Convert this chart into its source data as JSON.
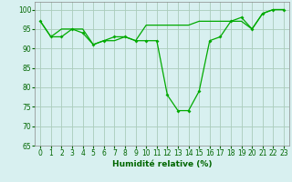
{
  "line1_x": [
    0,
    1,
    2,
    3,
    4,
    5,
    6,
    7,
    8,
    9,
    10,
    11,
    12,
    13,
    14,
    15,
    16,
    17,
    18,
    19,
    20,
    21,
    22,
    23
  ],
  "line1_y": [
    97,
    93,
    93,
    95,
    94,
    91,
    92,
    93,
    93,
    92,
    92,
    92,
    78,
    74,
    74,
    79,
    92,
    93,
    97,
    98,
    95,
    99,
    100,
    100
  ],
  "line2_x": [
    0,
    1,
    2,
    3,
    4,
    5,
    6,
    7,
    8,
    9,
    10,
    11,
    12,
    13,
    14,
    15,
    16,
    17,
    18,
    19,
    20,
    21,
    22,
    23
  ],
  "line2_y": [
    97,
    93,
    95,
    95,
    95,
    91,
    92,
    92,
    93,
    92,
    96,
    96,
    96,
    96,
    96,
    97,
    97,
    97,
    97,
    97,
    95,
    99,
    100,
    100
  ],
  "line_color": "#00aa00",
  "bg_color": "#d8f0f0",
  "grid_color": "#aaccbb",
  "xlabel": "Humidité relative (%)",
  "ylim": [
    65,
    102
  ],
  "xlim": [
    -0.5,
    23.5
  ],
  "yticks": [
    65,
    70,
    75,
    80,
    85,
    90,
    95,
    100
  ],
  "xticks": [
    0,
    1,
    2,
    3,
    4,
    5,
    6,
    7,
    8,
    9,
    10,
    11,
    12,
    13,
    14,
    15,
    16,
    17,
    18,
    19,
    20,
    21,
    22,
    23
  ],
  "label_color": "#006600",
  "tick_color": "#006600"
}
